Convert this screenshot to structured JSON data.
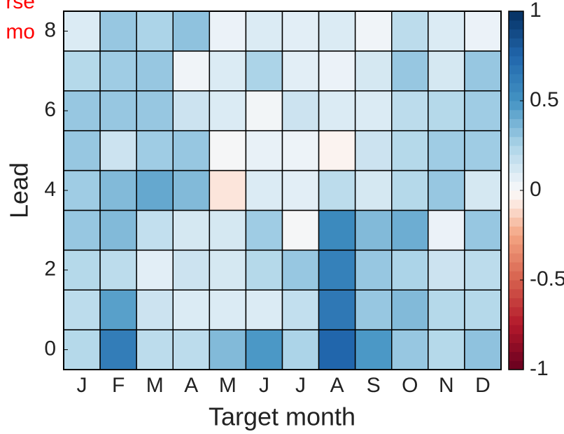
{
  "chart_data": {
    "type": "heatmap",
    "annotations": [
      "rse",
      "mo"
    ],
    "x_label": "Target month",
    "y_label": "Lead",
    "categories": [
      "J",
      "F",
      "M",
      "A",
      "M",
      "J",
      "J",
      "A",
      "S",
      "O",
      "N",
      "D"
    ],
    "y": [
      0,
      1,
      2,
      3,
      4,
      5,
      6,
      7,
      8
    ],
    "ylim": [
      -0.5,
      8.5
    ],
    "yticks": [
      0,
      2,
      4,
      6,
      8
    ],
    "z": [
      [
        0.22,
        0.62,
        0.2,
        0.2,
        0.35,
        0.48,
        0.25,
        0.75,
        0.48,
        0.3,
        0.22,
        0.32
      ],
      [
        0.2,
        0.45,
        0.15,
        0.1,
        0.1,
        0.1,
        0.18,
        0.65,
        0.3,
        0.35,
        0.22,
        0.22
      ],
      [
        0.22,
        0.2,
        0.08,
        0.15,
        0.12,
        0.22,
        0.3,
        0.6,
        0.3,
        0.25,
        0.15,
        0.2
      ],
      [
        0.3,
        0.35,
        0.18,
        0.12,
        0.12,
        0.28,
        0.01,
        0.55,
        0.35,
        0.4,
        0.05,
        0.3
      ],
      [
        0.28,
        0.35,
        0.42,
        0.35,
        -0.08,
        0.1,
        0.08,
        0.2,
        0.12,
        0.22,
        0.3,
        0.12
      ],
      [
        0.3,
        0.15,
        0.28,
        0.3,
        0.01,
        0.06,
        0.04,
        -0.03,
        0.15,
        0.22,
        0.28,
        0.28
      ],
      [
        0.3,
        0.3,
        0.3,
        0.15,
        0.1,
        0.02,
        0.15,
        0.1,
        0.1,
        0.2,
        0.22,
        0.28
      ],
      [
        0.22,
        0.28,
        0.3,
        0.03,
        0.1,
        0.25,
        0.08,
        0.05,
        0.12,
        0.3,
        0.12,
        0.3
      ],
      [
        0.1,
        0.3,
        0.25,
        0.32,
        0.05,
        0.1,
        0.08,
        0.1,
        0.03,
        0.2,
        0.1,
        0.05
      ]
    ],
    "colormap": "RdBu",
    "clim": [
      -1,
      1
    ],
    "cticks": [
      -1,
      -0.5,
      0,
      0.5,
      1
    ]
  }
}
